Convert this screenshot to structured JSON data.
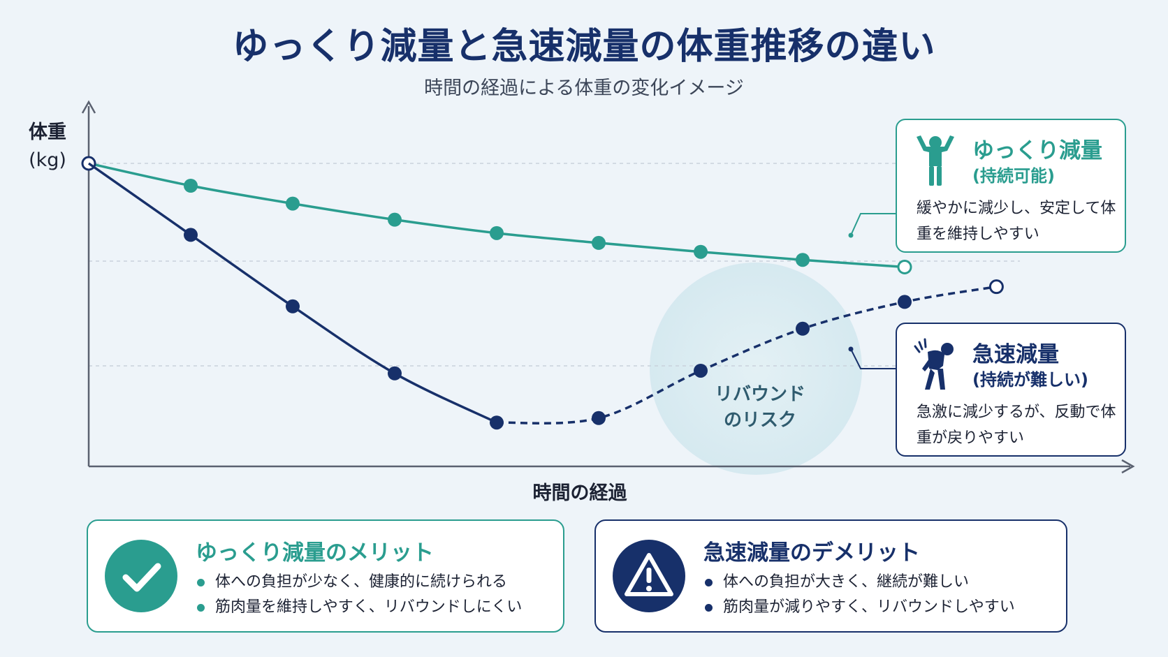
{
  "title": "ゆっくり減量と急速減量の体重推移の違い",
  "subtitle": "時間の経過による体重の変化イメージ",
  "colors": {
    "slow": "#2a9d8f",
    "fast": "#17306a",
    "rebound_zone": "#d9ecf2"
  },
  "chart_data": {
    "type": "line",
    "ylabel_line1": "体重",
    "ylabel_line2": "(kg)",
    "xlabel": "時間の経過",
    "x": [
      0,
      1,
      2,
      3,
      4,
      5,
      6,
      7,
      8
    ],
    "y_axis_ticks_printed": false,
    "grid": "horizontal dashed",
    "series": [
      {
        "name": "ゆっくり減量",
        "style": "solid",
        "values": [
          100,
          97.5,
          95.5,
          93.7,
          92.2,
          91.1,
          90.1,
          89.2,
          88.4
        ]
      },
      {
        "name": "急速減量",
        "style": "solid then dashed (rebound)",
        "values": [
          100,
          92.0,
          84.0,
          76.5,
          71.0,
          71.5,
          76.8,
          81.5,
          84.5,
          86.2
        ],
        "x": [
          0,
          1,
          2,
          3,
          4,
          5,
          6,
          7,
          8,
          8.9
        ],
        "dashed_from_index": 4
      }
    ],
    "annotations": [
      {
        "text_line1": "リバウンド",
        "text_line2": "のリスク",
        "zone": "rebound"
      }
    ]
  },
  "callouts": {
    "slow": {
      "icon": "person-arms-up-icon",
      "name": "ゆっくり減量",
      "sub": "(持続可能)",
      "desc": "緩やかに減少し、安定して体重を維持しやすい"
    },
    "fast": {
      "icon": "person-tired-icon",
      "name": "急速減量",
      "sub": "(持続が難しい)",
      "desc": "急激に減少するが、反動で体重が戻りやすい"
    }
  },
  "merit": {
    "icon": "check-icon",
    "title": "ゆっくり減量のメリット",
    "items": [
      "体への負担が少なく、健康的に続けられる",
      "筋肉量を維持しやすく、リバウンドしにくい"
    ]
  },
  "demerit": {
    "icon": "warning-icon",
    "title": "急速減量のデメリット",
    "items": [
      "体への負担が大きく、継続が難しい",
      "筋肉量が減りやすく、リバウンドしやすい"
    ]
  }
}
